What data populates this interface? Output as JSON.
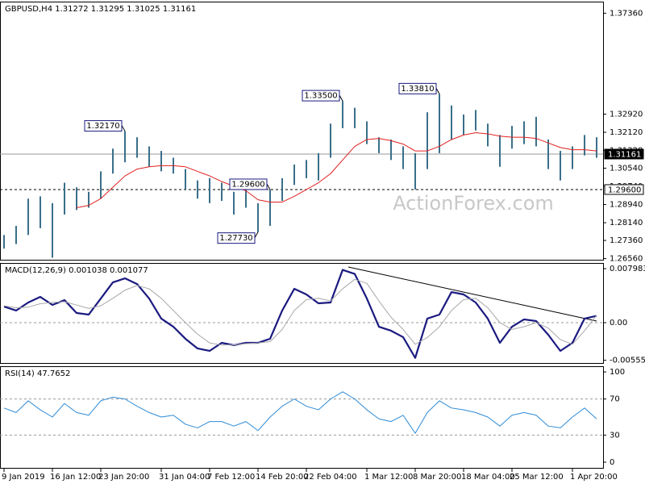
{
  "chart_data": [
    {
      "type": "ohlc",
      "title": "GBPUSD,H4  1.31272 1.31295 1.31025 1.31161",
      "watermark": "ActionForex.com",
      "categories": [
        "9 Jan 2019",
        null,
        null,
        null,
        "16 Jan 12:00",
        null,
        null,
        null,
        "23 Jan 20:00",
        null,
        null,
        null,
        null,
        "31 Jan 04:00",
        null,
        null,
        null,
        "7 Feb 12:00",
        null,
        null,
        null,
        "14 Feb 20:00",
        null,
        null,
        null,
        "22 Feb 04:00",
        null,
        null,
        null,
        null,
        "1 Mar 12:00",
        null,
        null,
        null,
        "8 Mar 20:00",
        null,
        null,
        null,
        "18 Mar 04:00",
        null,
        null,
        null,
        "25 Mar 12:00",
        null,
        null,
        null,
        null,
        "1 Apr 20:00",
        null,
        null
      ],
      "high": [
        1.276,
        1.28,
        1.292,
        1.293,
        1.29,
        1.299,
        1.297,
        1.295,
        1.304,
        1.314,
        1.3217,
        1.319,
        1.315,
        1.313,
        1.31,
        1.305,
        1.3,
        1.301,
        1.299,
        1.295,
        1.298,
        1.29,
        1.296,
        1.301,
        1.307,
        1.309,
        1.312,
        1.325,
        1.335,
        1.332,
        1.326,
        1.319,
        1.318,
        1.315,
        1.312,
        1.33,
        1.3381,
        1.333,
        1.329,
        1.331,
        1.325,
        1.32,
        1.324,
        1.326,
        1.328,
        1.318,
        1.313,
        1.315,
        1.32,
        1.319
      ],
      "low": [
        1.27,
        1.272,
        1.276,
        1.279,
        1.266,
        1.285,
        1.287,
        1.288,
        1.292,
        1.303,
        1.308,
        1.31,
        1.306,
        1.304,
        1.303,
        1.296,
        1.292,
        1.29,
        1.291,
        1.285,
        1.288,
        1.2773,
        1.28,
        1.291,
        1.298,
        1.301,
        1.3,
        1.31,
        1.323,
        1.323,
        1.316,
        1.312,
        1.309,
        1.305,
        1.296,
        1.305,
        1.312,
        1.318,
        1.32,
        1.322,
        1.315,
        1.306,
        1.314,
        1.316,
        1.315,
        1.305,
        1.3,
        1.305,
        1.311,
        1.31
      ],
      "color": "#3a6f8a",
      "ma": [
        null,
        null,
        null,
        null,
        null,
        null,
        1.288,
        1.289,
        1.292,
        1.297,
        1.302,
        1.305,
        1.306,
        1.3065,
        1.3065,
        1.306,
        1.304,
        1.302,
        1.2995,
        1.2975,
        1.2955,
        1.2915,
        1.2905,
        1.2905,
        1.293,
        1.296,
        1.299,
        1.303,
        1.309,
        1.315,
        1.318,
        1.3185,
        1.3175,
        1.316,
        1.313,
        1.313,
        1.315,
        1.318,
        1.32,
        1.321,
        1.3205,
        1.3195,
        1.319,
        1.319,
        1.3185,
        1.3165,
        1.3145,
        1.3135,
        1.3135,
        1.313
      ],
      "ma_color": "#e02020",
      "ylim": [
        1.2651,
        1.3787
      ],
      "yticks": [
        {
          "value": 1.3736,
          "label": "1.37360"
        },
        {
          "value": 1.3292,
          "label": "1.32920"
        },
        {
          "value": 1.3212,
          "label": "1.32120"
        },
        {
          "value": 1.3132,
          "label": "1.31320"
        },
        {
          "value": 1.3054,
          "label": "1.30540"
        },
        {
          "value": 1.2974,
          "label": "1.29740"
        },
        {
          "value": 1.2894,
          "label": "1.28940"
        },
        {
          "value": 1.2814,
          "label": "1.28140"
        },
        {
          "value": 1.2736,
          "label": "1.27360"
        },
        {
          "value": 1.2656,
          "label": "1.26560"
        }
      ],
      "hlines": [
        {
          "value": 1.296,
          "label": "1.29600",
          "style": "dashed"
        },
        {
          "value": 1.31161,
          "label": "1.31161",
          "style": "solid"
        }
      ],
      "annotations": [
        {
          "value": 1.3217,
          "label": "1.32170"
        },
        {
          "value": 1.335,
          "label": "1.33500"
        },
        {
          "value": 1.3381,
          "label": "1.33810"
        },
        {
          "value": 1.296,
          "label": "1.29600"
        },
        {
          "value": 1.2773,
          "label": "1.27730"
        }
      ]
    },
    {
      "type": "line",
      "title": "MACD(12,26,9) 0.001038 0.001077",
      "series": [
        {
          "color": "#1a1a80",
          "width": 2.2,
          "values": [
            0.00238,
            0.00179,
            0.00298,
            0.00381,
            0.00262,
            0.00333,
            0.00143,
            0.00119,
            0.00357,
            0.00595,
            0.00655,
            0.00571,
            0.00357,
            0.0006,
            -0.0006,
            -0.00238,
            -0.00381,
            -0.00417,
            -0.00298,
            -0.00333,
            -0.00298,
            -0.00298,
            -0.00238,
            0.00179,
            0.005,
            0.00417,
            0.00286,
            0.00298,
            0.0078,
            0.0072,
            0.00357,
            -0.0006,
            -0.00119,
            -0.00214,
            -0.0052,
            0.0006,
            0.00119,
            0.00452,
            0.00417,
            0.00298,
            0.0006,
            -0.00298,
            -0.0006,
            0.00048,
            0.00024,
            -0.00179,
            -0.00417,
            -0.00298,
            0.0006,
            0.001
          ]
        },
        {
          "color": "#a8a8a8",
          "width": 1,
          "values": [
            0.0025,
            0.0022,
            0.0023,
            0.0028,
            0.003,
            0.0031,
            0.0026,
            0.0021,
            0.0025,
            0.0036,
            0.0048,
            0.0055,
            0.005,
            0.0036,
            0.0018,
            0,
            -0.0017,
            -0.003,
            -0.0033,
            -0.0033,
            -0.0031,
            -0.003,
            -0.0028,
            -0.001,
            0.0018,
            0.0034,
            0.0036,
            0.0032,
            0.005,
            0.0064,
            0.0058,
            0.0032,
            0.0008,
            -0.001,
            -0.0032,
            -0.0022,
            -0.0006,
            0.0018,
            0.0034,
            0.0036,
            0.0022,
            0,
            -0.001,
            -0.0006,
            0,
            -0.0008,
            -0.0025,
            -0.0032,
            -0.0012,
            0.0011
          ]
        }
      ],
      "ylim": [
        -0.00596,
        0.00882
      ],
      "yticks": [
        0.007983,
        {
          "value": 0,
          "label": "0.00"
        },
        -0.005559
      ],
      "levels": [
        0
      ]
    },
    {
      "type": "line",
      "title": "RSI(14) 47.7652",
      "series": [
        {
          "color": "#2e8bd6",
          "width": 1,
          "values": [
            60,
            55,
            68,
            58,
            50,
            65,
            55,
            52,
            68,
            72,
            70,
            62,
            55,
            50,
            52,
            42,
            38,
            45,
            45,
            40,
            45,
            35,
            50,
            62,
            70,
            62,
            58,
            70,
            78,
            70,
            58,
            48,
            45,
            52,
            32,
            55,
            68,
            60,
            58,
            55,
            50,
            40,
            52,
            55,
            52,
            40,
            38,
            50,
            60,
            48
          ]
        }
      ],
      "ylim": [
        -6.3,
        106.3
      ],
      "yticks": [
        100,
        70,
        30,
        0
      ],
      "levels": [
        70,
        30
      ]
    }
  ]
}
